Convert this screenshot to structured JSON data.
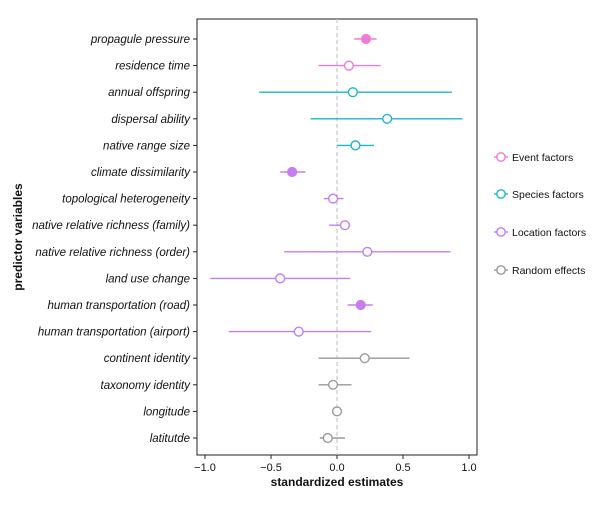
{
  "chart_data": {
    "type": "scatter",
    "subtype": "forest-plot",
    "xlabel": "standardized estimates",
    "ylabel": "predictor variables",
    "xlim": [
      -1.0,
      1.0
    ],
    "xticks": [
      "−1.0",
      "−0.5",
      "0.0",
      "0.5",
      "1.0"
    ],
    "xtick_values": [
      -1.0,
      -0.5,
      0.0,
      0.5,
      1.0
    ],
    "reference_line": 0,
    "grid": false,
    "legend_position": "right",
    "groups": [
      {
        "key": "event",
        "name": "Event factors",
        "color": "#f07ad7"
      },
      {
        "key": "species",
        "name": "Species factors",
        "color": "#1bb8c4"
      },
      {
        "key": "location",
        "name": "Location factors",
        "color": "#c77cf0"
      },
      {
        "key": "random",
        "name": "Random effects",
        "color": "#9a9a9a"
      }
    ],
    "predictors": [
      {
        "label": "propagule pressure",
        "group": "event",
        "estimate": 0.22,
        "lower": 0.13,
        "upper": 0.3,
        "significant": true
      },
      {
        "label": "residence time",
        "group": "event",
        "estimate": 0.09,
        "lower": -0.14,
        "upper": 0.33,
        "significant": false
      },
      {
        "label": "annual offspring",
        "group": "species",
        "estimate": 0.12,
        "lower": -0.59,
        "upper": 0.87,
        "significant": false
      },
      {
        "label": "dispersal ability",
        "group": "species",
        "estimate": 0.38,
        "lower": -0.2,
        "upper": 0.95,
        "significant": false
      },
      {
        "label": "native range size",
        "group": "species",
        "estimate": 0.14,
        "lower": 0.0,
        "upper": 0.28,
        "significant": false
      },
      {
        "label": "climate dissimilarity",
        "group": "location",
        "estimate": -0.34,
        "lower": -0.43,
        "upper": -0.24,
        "significant": true
      },
      {
        "label": "topological heterogeneity",
        "group": "location",
        "estimate": -0.03,
        "lower": -0.1,
        "upper": 0.05,
        "significant": false
      },
      {
        "label": "native relative richness (family)",
        "group": "location",
        "estimate": 0.06,
        "lower": -0.06,
        "upper": 0.1,
        "significant": false
      },
      {
        "label": "native relative richness (order)",
        "group": "location",
        "estimate": 0.23,
        "lower": -0.4,
        "upper": 0.86,
        "significant": false
      },
      {
        "label": "land use change",
        "group": "location",
        "estimate": -0.43,
        "lower": -0.96,
        "upper": 0.1,
        "significant": false
      },
      {
        "label": "human transportation (road)",
        "group": "location",
        "estimate": 0.18,
        "lower": 0.08,
        "upper": 0.27,
        "significant": true
      },
      {
        "label": "human transportation (airport)",
        "group": "location",
        "estimate": -0.29,
        "lower": -0.82,
        "upper": 0.26,
        "significant": false
      },
      {
        "label": "continent identity",
        "group": "random",
        "estimate": 0.21,
        "lower": -0.14,
        "upper": 0.55,
        "significant": false
      },
      {
        "label": "taxonomy identity",
        "group": "random",
        "estimate": -0.03,
        "lower": -0.14,
        "upper": 0.11,
        "significant": false
      },
      {
        "label": "longitude",
        "group": "random",
        "estimate": 0.0,
        "lower": 0.0,
        "upper": 0.0,
        "significant": false
      },
      {
        "label": "latitutde",
        "group": "random",
        "estimate": -0.07,
        "lower": -0.13,
        "upper": 0.06,
        "significant": false
      }
    ]
  }
}
